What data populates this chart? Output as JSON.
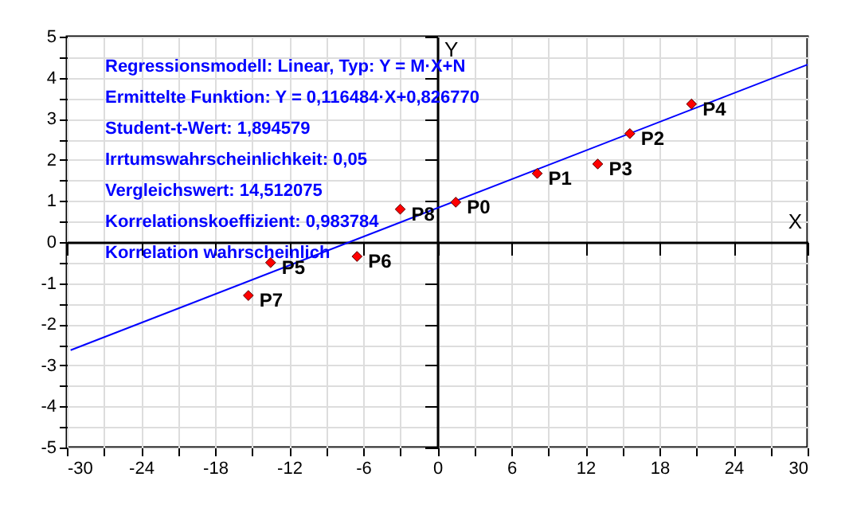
{
  "chart_data": {
    "type": "scatter",
    "xlabel": "X",
    "ylabel": "Y",
    "xlim": [
      -30,
      30
    ],
    "ylim": [
      -5,
      5
    ],
    "xticks": [
      -30,
      {
        "value": -27,
        "label": null
      },
      -24,
      {
        "value": -21,
        "label": null
      },
      -18,
      {
        "value": -15,
        "label": null
      },
      -12,
      {
        "value": -9,
        "label": null
      },
      -6,
      {
        "value": -3,
        "label": null
      },
      0,
      {
        "value": 3,
        "label": null
      },
      6,
      {
        "value": 9,
        "label": null
      },
      12,
      {
        "value": 15,
        "label": null
      },
      18,
      {
        "value": 21,
        "label": null
      },
      24,
      {
        "value": 27,
        "label": null
      },
      30
    ],
    "yticks": [
      -5,
      {
        "value": -4.5,
        "label": null
      },
      -4,
      {
        "value": -3.5,
        "label": null
      },
      -3,
      {
        "value": -2.5,
        "label": null
      },
      -2,
      {
        "value": -1.5,
        "label": null
      },
      -1,
      {
        "value": -0.5,
        "label": null
      },
      0,
      {
        "value": 0.5,
        "label": null
      },
      1,
      {
        "value": 1.5,
        "label": null
      },
      2,
      {
        "value": 2.5,
        "label": null
      },
      3,
      {
        "value": 3.5,
        "label": null
      },
      4,
      {
        "value": 4.5,
        "label": null
      },
      5
    ],
    "grid": true,
    "series": [
      {
        "type": "line",
        "color": "#0000ff",
        "x": [
          -29.7,
          30
        ],
        "values": [
          -2.63,
          4.32
        ]
      },
      {
        "type": "scatter",
        "color": "#ff0000",
        "marker": "diamond",
        "x": [
          1.5,
          8.1,
          15.6,
          13.0,
          20.6,
          -13.5,
          -6.5,
          -15.3,
          -3.0
        ],
        "values": [
          0.97,
          1.67,
          2.64,
          1.9,
          3.36,
          -0.5,
          -0.35,
          -1.3,
          0.8
        ],
        "value_labels": [
          "P0",
          "P1",
          "P2",
          "P3",
          "P4",
          "P5",
          "P6",
          "P7",
          "P8"
        ]
      }
    ],
    "annotations": [
      "Regressionsmodell: Linear, Typ: Y = M·X+N",
      "Ermittelte Funktion: Y = 0,116484·X+0,826770",
      "Student-t-Wert: 1,894579",
      "Irrtumswahrscheinlichkeit: 0,05",
      "Vergleichswert: 14,512075",
      "Korrelationskoeffizient: 0,983784",
      "Korrelation wahrscheinlich"
    ]
  }
}
